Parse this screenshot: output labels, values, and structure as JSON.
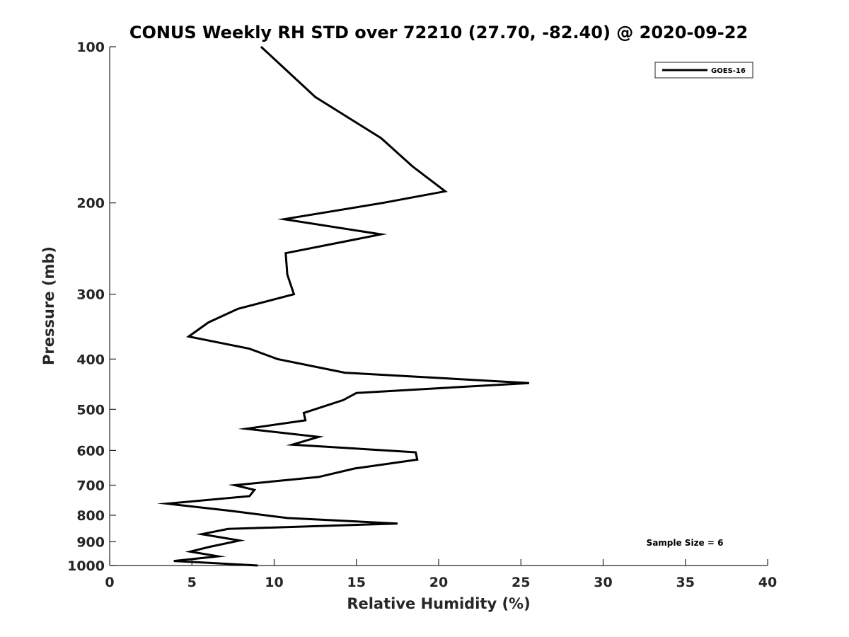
{
  "chart_data": {
    "type": "line",
    "title": "CONUS Weekly RH STD over 72210 (27.70, -82.40) @ 2020-09-22",
    "xlabel": "Relative Humidity (%)",
    "ylabel": "Pressure (mb)",
    "xlim": [
      0,
      40
    ],
    "ylim": [
      100,
      1000
    ],
    "y_scale": "log",
    "y_reversed": true,
    "grid": false,
    "xticks": [
      0,
      5,
      10,
      15,
      20,
      25,
      30,
      35,
      40
    ],
    "xtick_labels": [
      "0",
      "5",
      "10",
      "15",
      "20",
      "25",
      "30",
      "35",
      "40"
    ],
    "yticks": [
      100,
      200,
      300,
      400,
      500,
      600,
      700,
      800,
      900,
      1000
    ],
    "ytick_labels": [
      "100",
      "200",
      "300",
      "400",
      "500",
      "600",
      "700",
      "800",
      "900",
      "1000"
    ],
    "legend_position": "top-right",
    "annotation": "Sample Size = 6",
    "series": [
      {
        "name": "GOES-16",
        "color": "#000000",
        "x": [
          9.2,
          12.5,
          16.5,
          18.4,
          20.4,
          16.6,
          10.6,
          16.5,
          10.7,
          10.8,
          11.2,
          7.8,
          6.0,
          4.8,
          8.5,
          10.2,
          14.3,
          25.5,
          15.0,
          14.2,
          11.8,
          11.9,
          8.3,
          12.7,
          11.1,
          18.6,
          18.7,
          14.9,
          12.7,
          7.6,
          8.8,
          8.5,
          3.5,
          7.4,
          10.8,
          17.5,
          7.2,
          5.6,
          7.9,
          6.1,
          4.9,
          6.6,
          3.9,
          9.0
        ],
        "y": [
          100,
          125,
          150,
          170,
          190,
          200,
          215,
          230,
          250,
          275,
          300,
          320,
          340,
          362,
          382,
          400,
          425,
          445,
          465,
          480,
          508,
          525,
          545,
          565,
          585,
          605,
          625,
          650,
          675,
          700,
          715,
          735,
          760,
          785,
          810,
          830,
          850,
          870,
          895,
          920,
          940,
          960,
          980,
          1000
        ]
      }
    ]
  }
}
